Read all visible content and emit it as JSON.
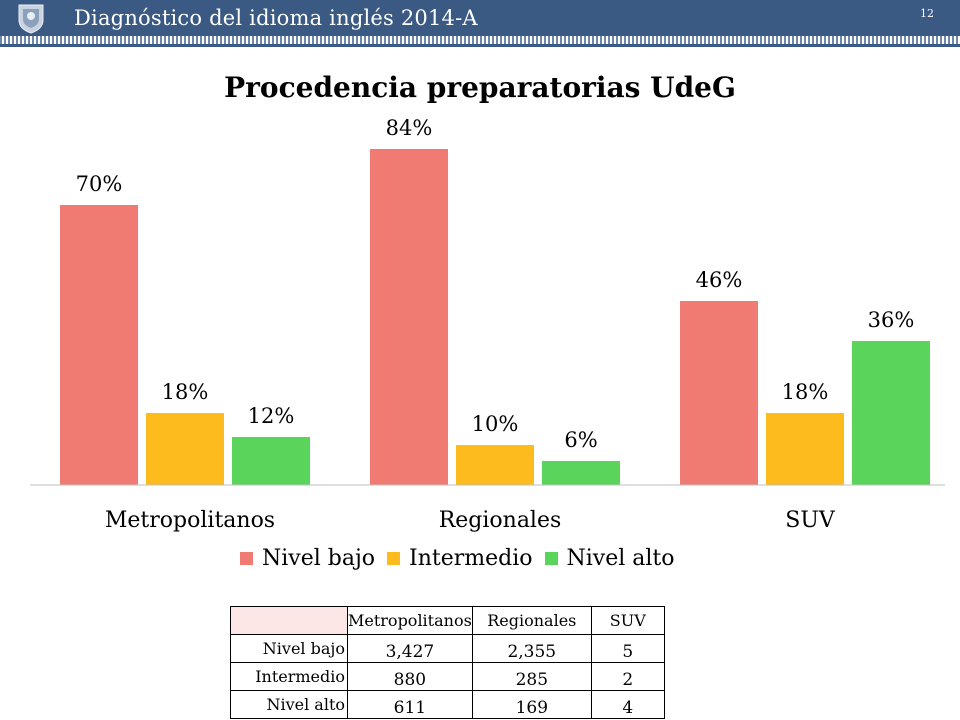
{
  "header": {
    "title": "Diagnóstico del idioma inglés 2014-A",
    "page_number": "12"
  },
  "colors": {
    "header_bg": "#3a5a84",
    "nivel_bajo": "#f07b72",
    "intermedio": "#fdbb1e",
    "nivel_alto": "#5bd45b"
  },
  "chart_data": {
    "type": "bar",
    "title": "Procedencia preparatorias UdeG",
    "categories": [
      "Metropolitanos",
      "Regionales",
      "SUV"
    ],
    "series": [
      {
        "name": "Nivel bajo",
        "values": [
          70,
          84,
          46
        ],
        "labels": [
          "70%",
          "84%",
          "46%"
        ],
        "color": "#f07b72"
      },
      {
        "name": "Intermedio",
        "values": [
          18,
          10,
          18
        ],
        "labels": [
          "18%",
          "10%",
          "18%"
        ],
        "color": "#fdbb1e"
      },
      {
        "name": "Nivel alto",
        "values": [
          12,
          6,
          36
        ],
        "labels": [
          "12%",
          "6%",
          "36%"
        ],
        "color": "#5bd45b"
      }
    ],
    "ylim": [
      0,
      100
    ],
    "legend_position": "bottom",
    "grid": false
  },
  "table": {
    "columns": [
      "Metropolitanos",
      "Regionales",
      "SUV"
    ],
    "rows": [
      {
        "label": "Nivel bajo",
        "values": [
          "3,427",
          "2,355",
          "5"
        ]
      },
      {
        "label": "Intermedio",
        "values": [
          "880",
          "285",
          "2"
        ]
      },
      {
        "label": "Nivel alto",
        "values": [
          "611",
          "169",
          "4"
        ]
      }
    ]
  }
}
